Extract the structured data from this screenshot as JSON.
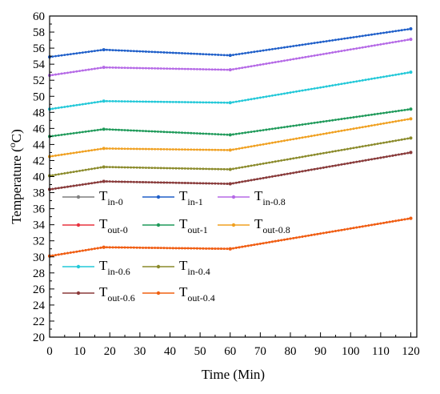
{
  "chart_data": {
    "type": "line",
    "xlabel": "Time (Min)",
    "ylabel_main": "Temperature (",
    "ylabel_sup": "o",
    "ylabel_tail": "C)",
    "xlim": [
      0,
      122
    ],
    "ylim": [
      20,
      60
    ],
    "xticks": [
      0,
      10,
      20,
      30,
      40,
      50,
      60,
      70,
      80,
      90,
      100,
      110,
      120
    ],
    "yticks": [
      20,
      22,
      24,
      26,
      28,
      30,
      32,
      34,
      36,
      38,
      40,
      42,
      44,
      46,
      48,
      50,
      52,
      54,
      56,
      58,
      60
    ],
    "grid": false,
    "series": [
      {
        "name": "T",
        "sub": "in-0",
        "color": "#7f7f7f",
        "points": [
          [
            0,
            38.4
          ],
          [
            18,
            39.4
          ],
          [
            60,
            39.1
          ],
          [
            120,
            43.0
          ]
        ]
      },
      {
        "name": "T",
        "sub": "in-1",
        "color": "#1f5fc9",
        "points": [
          [
            0,
            54.9
          ],
          [
            18,
            55.8
          ],
          [
            60,
            55.1
          ],
          [
            120,
            58.4
          ]
        ]
      },
      {
        "name": "T",
        "sub": "in-0.8",
        "color": "#b569e6",
        "points": [
          [
            0,
            52.6
          ],
          [
            18,
            53.6
          ],
          [
            60,
            53.3
          ],
          [
            120,
            57.1
          ]
        ]
      },
      {
        "name": "T",
        "sub": "out-0",
        "color": "#e8323f",
        "points": [
          [
            0,
            30.1
          ],
          [
            18,
            31.2
          ],
          [
            60,
            31.0
          ],
          [
            120,
            34.8
          ]
        ]
      },
      {
        "name": "T",
        "sub": "out-1",
        "color": "#1f9a5a",
        "points": [
          [
            0,
            45.0
          ],
          [
            18,
            45.9
          ],
          [
            60,
            45.2
          ],
          [
            120,
            48.4
          ]
        ]
      },
      {
        "name": "T",
        "sub": "out-0.8",
        "color": "#f0a020",
        "points": [
          [
            0,
            42.5
          ],
          [
            18,
            43.5
          ],
          [
            60,
            43.3
          ],
          [
            120,
            47.2
          ]
        ]
      },
      {
        "name": "T",
        "sub": "in-0.6",
        "color": "#22c8d8",
        "points": [
          [
            0,
            48.4
          ],
          [
            18,
            49.4
          ],
          [
            60,
            49.2
          ],
          [
            120,
            53.0
          ]
        ]
      },
      {
        "name": "T",
        "sub": "in-0.4",
        "color": "#8a8a2a",
        "points": [
          [
            0,
            40.1
          ],
          [
            18,
            41.2
          ],
          [
            60,
            40.9
          ],
          [
            120,
            44.8
          ]
        ]
      },
      {
        "name": "T",
        "sub": "out-0.6",
        "color": "#8b3a3a",
        "points": [
          [
            0,
            38.4
          ],
          [
            18,
            39.4
          ],
          [
            60,
            39.1
          ],
          [
            120,
            43.0
          ]
        ]
      },
      {
        "name": "T",
        "sub": "out-0.4",
        "color": "#f06010",
        "points": [
          [
            0,
            30.1
          ],
          [
            18,
            31.2
          ],
          [
            60,
            31.0
          ],
          [
            120,
            34.8
          ]
        ]
      }
    ],
    "legend_placement": "lower-left inside plot"
  }
}
